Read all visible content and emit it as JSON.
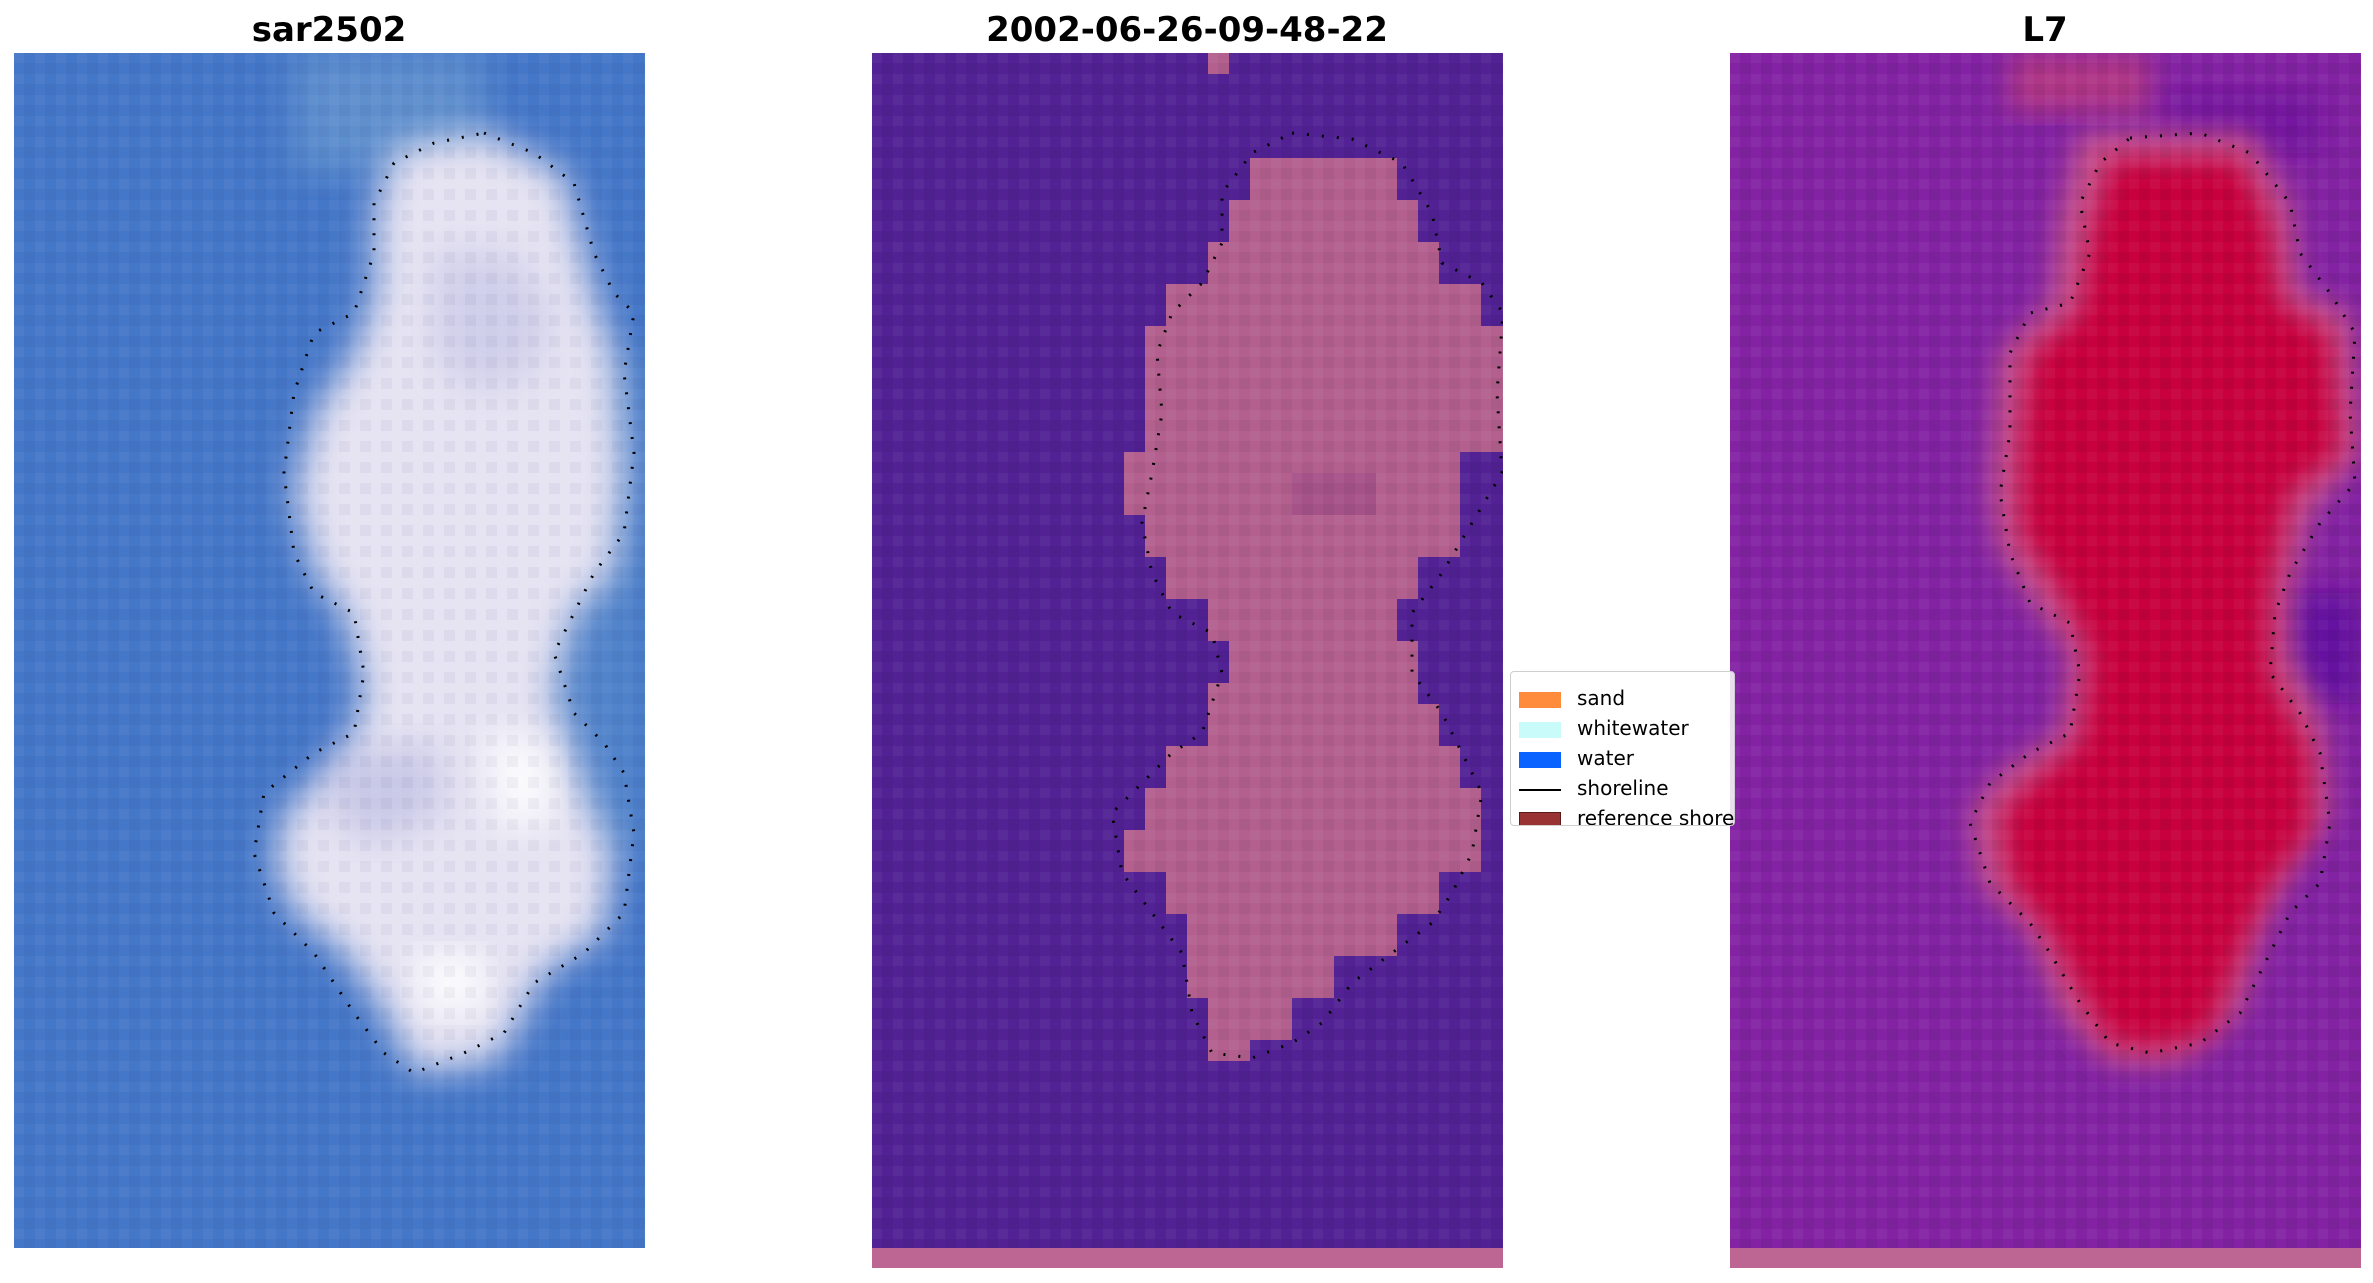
{
  "panels": [
    {
      "title": "sar2502"
    },
    {
      "title": "2002-06-26-09-48-22"
    },
    {
      "title": "L7"
    }
  ],
  "legend": {
    "items": [
      {
        "label": "sand",
        "color": "#ff8c3a"
      },
      {
        "label": "whitewater",
        "color": "#c8fbf9"
      },
      {
        "label": "water",
        "color": "#0a62ff"
      },
      {
        "label": "shoreline",
        "color": "#000000"
      },
      {
        "label": "reference shoreline",
        "color": "#993333"
      }
    ]
  },
  "colors": {
    "rgb_water": "#4577c8",
    "rgb_sand": "#e6e3f2",
    "class_water": "#522295",
    "class_sand": "#b3608f",
    "index_water": "#8323a3",
    "index_sand": "#c8063e",
    "bottom_band": "#bd6593"
  }
}
